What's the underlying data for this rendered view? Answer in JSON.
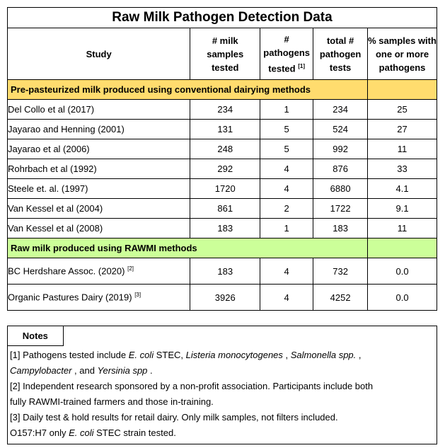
{
  "title": "Raw Milk Pathogen Detection Data",
  "headers": {
    "study": "Study",
    "samples": [
      "# milk",
      "samples",
      "tested"
    ],
    "pathogens": [
      "#",
      "pathogens",
      "tested"
    ],
    "pathogens_ref": "[1]",
    "tests": [
      "total #",
      "pathogen",
      "tests"
    ],
    "pct": [
      "% samples with",
      "one or more",
      "pathogens"
    ]
  },
  "sections": {
    "conventional": "Pre-pasteurized milk produced using conventional dairying methods",
    "rawmi": "Raw milk produced using RAWMI methods"
  },
  "rows_conventional": [
    {
      "study": "Del Collo et al (2017)",
      "samples": "234",
      "pathogens": "1",
      "tests": "234",
      "pct": "25"
    },
    {
      "study": "Jayarao and Henning (2001)",
      "samples": "131",
      "pathogens": "5",
      "tests": "524",
      "pct": "27"
    },
    {
      "study": "Jayarao et al (2006)",
      "samples": "248",
      "pathogens": "5",
      "tests": "992",
      "pct": "11"
    },
    {
      "study": "Rohrbach et al (1992)",
      "samples": "292",
      "pathogens": "4",
      "tests": "876",
      "pct": "33"
    },
    {
      "study": "Steele et. al. (1997)",
      "samples": "1720",
      "pathogens": "4",
      "tests": "6880",
      "pct": "4.1"
    },
    {
      "study": "Van Kessel et al (2004)",
      "samples": "861",
      "pathogens": "2",
      "tests": "1722",
      "pct": "9.1"
    },
    {
      "study": "Van Kessel et al (2008)",
      "samples": "183",
      "pathogens": "1",
      "tests": "183",
      "pct": "11"
    }
  ],
  "rows_rawmi": [
    {
      "study": "BC Herdshare Assoc. (2020)",
      "ref": "[2]",
      "samples": "183",
      "pathogens": "4",
      "tests": "732",
      "pct": "0.0"
    },
    {
      "study": "Organic Pastures Dairy (2019)",
      "ref": "[3]",
      "samples": "3926",
      "pathogens": "4",
      "tests": "4252",
      "pct": "0.0"
    }
  ],
  "notes": {
    "heading": "Notes",
    "n1_a": "[1] Pathogens tested include ",
    "n1_ecoli": "E. coli",
    "n1_b": " STEC, ",
    "n1_listeria": "Listeria monocytogenes",
    "n1_c": " , ",
    "n1_salmonella": "Salmonella spp.",
    "n1_d": " ,",
    "n1_campy": "Campylobacter",
    "n1_e": " , and ",
    "n1_yersinia": "Yersinia spp",
    "n1_f": " .",
    "n2_line1": "[2] Independent research sponsored by a non-profit association. Participants include both",
    "n2_line2": "fully RAWMI-trained farmers and those in-training.",
    "n3": "[3] Daily test & hold results for retail dairy. Only milk samples, not filters included.",
    "n4_a": "O157:H7 only ",
    "n4_ecoli": "E. coli",
    "n4_b": " STEC strain tested."
  }
}
